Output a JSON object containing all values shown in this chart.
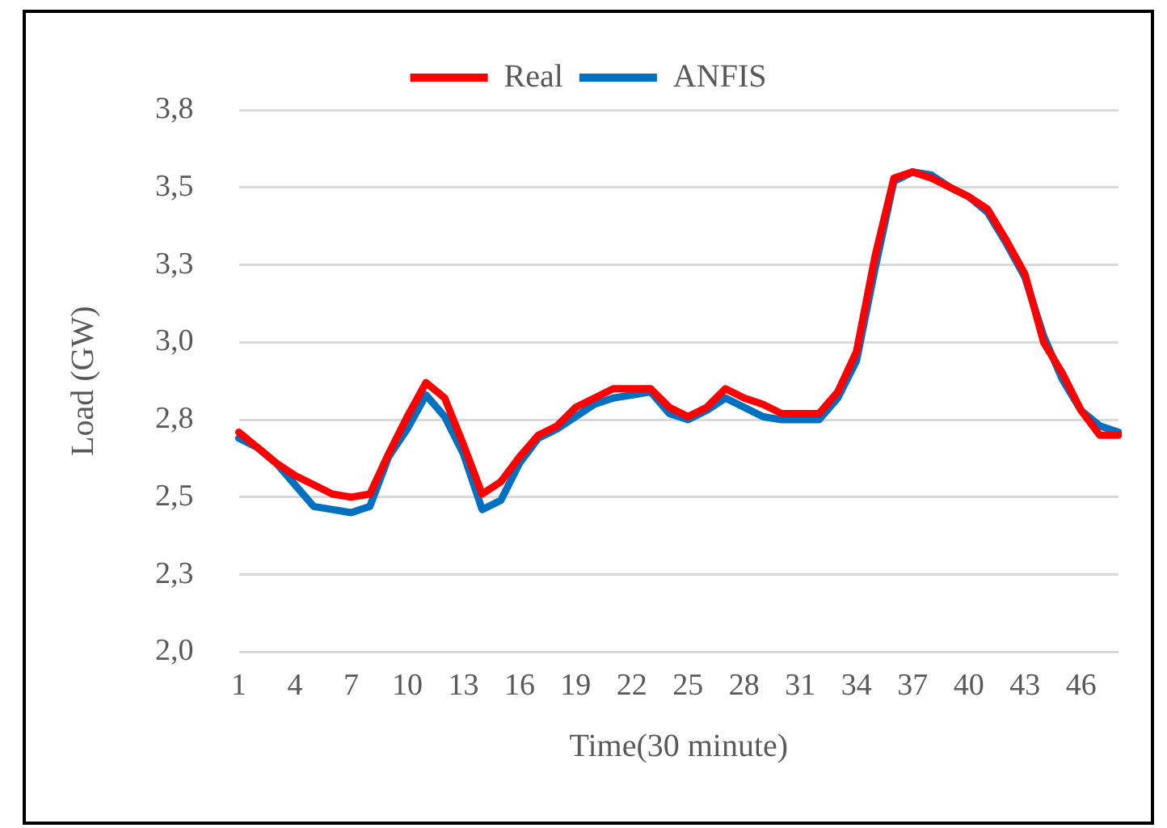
{
  "chart_data": {
    "type": "line",
    "xlabel": "Time(30 minute)",
    "ylabel": "Load (GW)",
    "categories": [
      "1",
      null,
      null,
      "4",
      null,
      null,
      "7",
      null,
      null,
      "10",
      null,
      null,
      "13",
      null,
      null,
      "16",
      null,
      null,
      "19",
      null,
      null,
      "22",
      null,
      null,
      "25",
      null,
      null,
      "28",
      null,
      null,
      "31",
      null,
      null,
      "34",
      null,
      null,
      "37",
      null,
      null,
      "40",
      null,
      null,
      "43",
      null,
      null,
      "46",
      null,
      null
    ],
    "series": [
      {
        "name": "Real",
        "color": "#ff0000",
        "values": [
          2.71,
          2.66,
          2.61,
          2.57,
          2.54,
          2.51,
          2.5,
          2.51,
          2.64,
          2.76,
          2.87,
          2.82,
          2.67,
          2.51,
          2.55,
          2.63,
          2.7,
          2.73,
          2.79,
          2.82,
          2.85,
          2.85,
          2.85,
          2.79,
          2.76,
          2.79,
          2.85,
          2.82,
          2.8,
          2.77,
          2.77,
          2.77,
          2.84,
          2.97,
          3.28,
          3.53,
          3.55,
          3.53,
          3.5,
          3.47,
          3.43,
          3.33,
          3.22,
          3.0,
          2.9,
          2.78,
          2.7,
          2.7
        ]
      },
      {
        "name": "ANFIS",
        "color": "#0070c0",
        "values": [
          2.69,
          2.66,
          2.61,
          2.54,
          2.47,
          2.46,
          2.45,
          2.47,
          2.63,
          2.72,
          2.83,
          2.76,
          2.64,
          2.46,
          2.49,
          2.61,
          2.69,
          2.72,
          2.76,
          2.8,
          2.82,
          2.83,
          2.84,
          2.77,
          2.75,
          2.78,
          2.82,
          2.79,
          2.76,
          2.75,
          2.75,
          2.75,
          2.82,
          2.94,
          3.24,
          3.52,
          3.55,
          3.54,
          3.5,
          3.47,
          3.42,
          3.32,
          3.21,
          3.02,
          2.88,
          2.78,
          2.73,
          2.71
        ]
      }
    ],
    "ylim": [
      2.0,
      3.75
    ],
    "yticks": [
      {
        "value": 2.0,
        "label": "2,0"
      },
      {
        "value": 2.25,
        "label": "2,3"
      },
      {
        "value": 2.5,
        "label": "2,5"
      },
      {
        "value": 2.75,
        "label": "2,8"
      },
      {
        "value": 3.0,
        "label": "3,0"
      },
      {
        "value": 3.25,
        "label": "3,3"
      },
      {
        "value": 3.5,
        "label": "3,5"
      },
      {
        "value": 3.75,
        "label": "3,8"
      }
    ],
    "grid": "y",
    "legend": "top",
    "marker": "none",
    "line_style": "solid"
  }
}
